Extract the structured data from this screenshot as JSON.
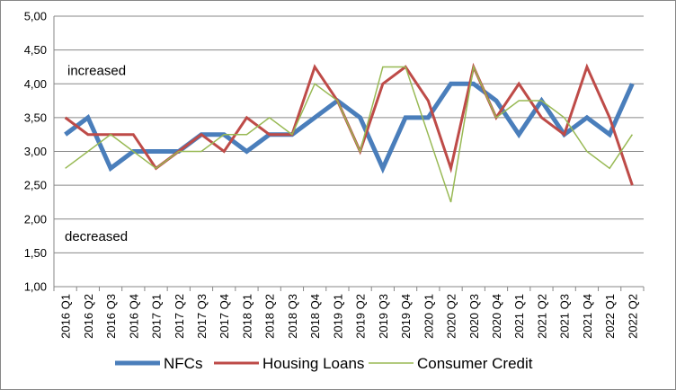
{
  "chart_data": {
    "type": "line",
    "title": "",
    "xlabel": "",
    "ylabel": "",
    "ylim": [
      1.0,
      5.0
    ],
    "yticks": [
      "1,00",
      "1,50",
      "2,00",
      "2,50",
      "3,00",
      "3,50",
      "4,00",
      "4,50",
      "5,00"
    ],
    "grid": "horizontal",
    "legend_position": "bottom",
    "annotations": {
      "upper": "increased",
      "lower": "decreased"
    },
    "categories": [
      "2016 Q1",
      "2016 Q2",
      "2016 Q3",
      "2016 Q4",
      "2017 Q1",
      "2017 Q2",
      "2017 Q3",
      "2017 Q4",
      "2018 Q1",
      "2018 Q2",
      "2018 Q3",
      "2018 Q4",
      "2019 Q1",
      "2019 Q2",
      "2019 Q3",
      "2019 Q4",
      "2020 Q1",
      "2020 Q2",
      "2020 Q3",
      "2020 Q4",
      "2021 Q1",
      "2021 Q2",
      "2021 Q3",
      "2021 Q4",
      "2022 Q1",
      "2022 Q2"
    ],
    "series": [
      {
        "name": "NFCs",
        "color": "#4a7ebb",
        "values": [
          3.25,
          3.5,
          2.75,
          3.0,
          3.0,
          3.0,
          3.25,
          3.25,
          3.0,
          3.25,
          3.25,
          3.5,
          3.75,
          3.5,
          2.75,
          3.5,
          3.5,
          4.0,
          4.0,
          3.75,
          3.25,
          3.75,
          3.25,
          3.5,
          3.25,
          4.0
        ]
      },
      {
        "name": "Housing Loans",
        "color": "#be4b48",
        "values": [
          3.5,
          3.25,
          3.25,
          3.25,
          2.75,
          3.0,
          3.25,
          3.0,
          3.5,
          3.25,
          3.25,
          4.25,
          3.75,
          3.0,
          4.0,
          4.25,
          3.75,
          2.75,
          4.25,
          3.5,
          4.0,
          3.5,
          3.25,
          4.25,
          3.5,
          2.5
        ]
      },
      {
        "name": "Consumer Credit",
        "color": "#98b954",
        "values": [
          2.75,
          3.0,
          3.25,
          3.0,
          2.75,
          3.0,
          3.0,
          3.25,
          3.25,
          3.5,
          3.25,
          4.0,
          3.75,
          3.0,
          4.25,
          4.25,
          3.25,
          2.25,
          4.25,
          3.5,
          3.75,
          3.75,
          3.5,
          3.0,
          2.75,
          3.25
        ]
      }
    ]
  }
}
